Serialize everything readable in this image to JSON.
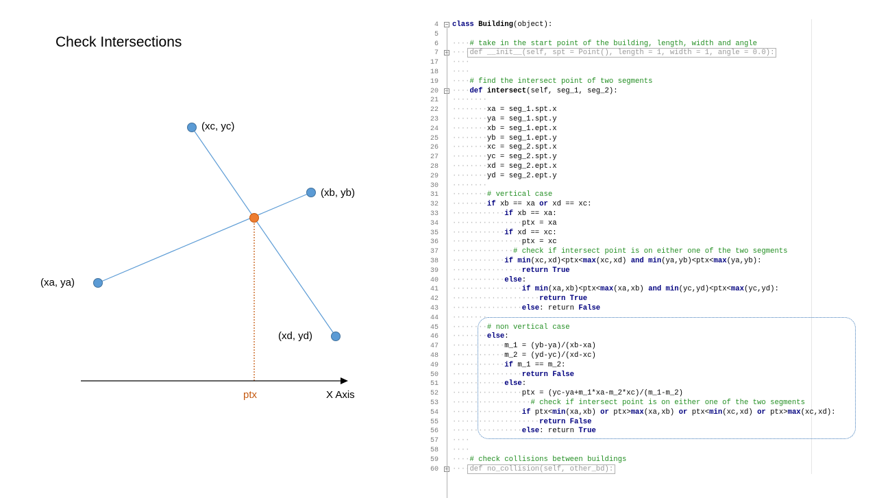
{
  "title": "Check Intersections",
  "diagram": {
    "colors": {
      "line": "#5b9bd5",
      "point": "#5b9bd5",
      "intersection": "#ed7d31",
      "axis": "#000000",
      "ptx_line": "#c55a11"
    },
    "labels": {
      "xc_yc": "(xc, yc)",
      "xb_yb": "(xb, yb)",
      "xa_ya": "(xa, ya)",
      "xd_yd": "(xd, yd)",
      "ptx": "ptx",
      "x_axis": "X Axis"
    }
  },
  "code": {
    "colors": {
      "keyword": "#00007f",
      "comment": "#248f24",
      "line_number": "#7a7a7a",
      "highlight_border": "#3b78b8"
    },
    "lines": [
      {
        "n": "4",
        "indent": 0,
        "fold": "minus",
        "tokens": [
          [
            "kw",
            "class "
          ],
          [
            "fn",
            "Building"
          ],
          [
            "pl",
            "(object):"
          ]
        ]
      },
      {
        "n": "5",
        "indent": 0,
        "tokens": []
      },
      {
        "n": "6",
        "indent": 4,
        "tokens": [
          [
            "cm",
            "# take in the start point of the building, length, width and angle"
          ]
        ]
      },
      {
        "n": "7",
        "indent": 4,
        "fold": "plus",
        "tokens": [
          [
            "folded",
            "def __init__(self, spt = Point(), length = 1, width = 1, angle = 0.0):"
          ]
        ]
      },
      {
        "n": "17",
        "indent": 4,
        "tokens": []
      },
      {
        "n": "18",
        "indent": 4,
        "tokens": []
      },
      {
        "n": "19",
        "indent": 4,
        "tokens": [
          [
            "cm",
            "# find the intersect point of two segments"
          ]
        ]
      },
      {
        "n": "20",
        "indent": 4,
        "fold": "minus",
        "tokens": [
          [
            "kw",
            "def "
          ],
          [
            "fn",
            "intersect"
          ],
          [
            "pl",
            "(self, seg_1, seg_2):"
          ]
        ]
      },
      {
        "n": "21",
        "indent": 8,
        "tokens": []
      },
      {
        "n": "22",
        "indent": 8,
        "tokens": [
          [
            "pl",
            "xa = seg_1.spt.x"
          ]
        ]
      },
      {
        "n": "23",
        "indent": 8,
        "tokens": [
          [
            "pl",
            "ya = seg_1.spt.y"
          ]
        ]
      },
      {
        "n": "24",
        "indent": 8,
        "tokens": [
          [
            "pl",
            "xb = seg_1.ept.x"
          ]
        ]
      },
      {
        "n": "25",
        "indent": 8,
        "tokens": [
          [
            "pl",
            "yb = seg_1.ept.y"
          ]
        ]
      },
      {
        "n": "26",
        "indent": 8,
        "tokens": [
          [
            "pl",
            "xc = seg_2.spt.x"
          ]
        ]
      },
      {
        "n": "27",
        "indent": 8,
        "tokens": [
          [
            "pl",
            "yc = seg_2.spt.y"
          ]
        ]
      },
      {
        "n": "28",
        "indent": 8,
        "tokens": [
          [
            "pl",
            "xd = seg_2.ept.x"
          ]
        ]
      },
      {
        "n": "29",
        "indent": 8,
        "tokens": [
          [
            "pl",
            "yd = seg_2.ept.y"
          ]
        ]
      },
      {
        "n": "30",
        "indent": 8,
        "tokens": []
      },
      {
        "n": "31",
        "indent": 8,
        "tokens": [
          [
            "cm",
            "# vertical case"
          ]
        ]
      },
      {
        "n": "32",
        "indent": 8,
        "tokens": [
          [
            "kw",
            "if "
          ],
          [
            "pl",
            "xb == xa "
          ],
          [
            "kw",
            "or "
          ],
          [
            "pl",
            "xd == xc:"
          ]
        ]
      },
      {
        "n": "33",
        "indent": 12,
        "tokens": [
          [
            "kw",
            "if "
          ],
          [
            "pl",
            "xb == xa:"
          ]
        ]
      },
      {
        "n": "34",
        "indent": 16,
        "tokens": [
          [
            "pl",
            "ptx = xa"
          ]
        ]
      },
      {
        "n": "35",
        "indent": 12,
        "tokens": [
          [
            "kw",
            "if "
          ],
          [
            "pl",
            "xd == xc:"
          ]
        ]
      },
      {
        "n": "36",
        "indent": 16,
        "tokens": [
          [
            "pl",
            "ptx = xc"
          ]
        ]
      },
      {
        "n": "37",
        "indent": 14,
        "tokens": [
          [
            "cm",
            "# check if intersect point is on either one of the two segments"
          ]
        ]
      },
      {
        "n": "38",
        "indent": 12,
        "tokens": [
          [
            "kw",
            "if "
          ],
          [
            "bi",
            "min"
          ],
          [
            "pl",
            "(xc,xd)<ptx<"
          ],
          [
            "bi",
            "max"
          ],
          [
            "pl",
            "(xc,xd) "
          ],
          [
            "kw",
            "and "
          ],
          [
            "bi",
            "min"
          ],
          [
            "pl",
            "(ya,yb)<ptx<"
          ],
          [
            "bi",
            "max"
          ],
          [
            "pl",
            "(ya,yb):"
          ]
        ]
      },
      {
        "n": "39",
        "indent": 16,
        "tokens": [
          [
            "kw",
            "return "
          ],
          [
            "kw",
            "True"
          ]
        ]
      },
      {
        "n": "40",
        "indent": 12,
        "tokens": [
          [
            "kw",
            "else"
          ],
          [
            "pl",
            ":"
          ]
        ]
      },
      {
        "n": "41",
        "indent": 16,
        "tokens": [
          [
            "kw",
            "if "
          ],
          [
            "bi",
            "min"
          ],
          [
            "pl",
            "(xa,xb)<ptx<"
          ],
          [
            "bi",
            "max"
          ],
          [
            "pl",
            "(xa,xb) "
          ],
          [
            "kw",
            "and "
          ],
          [
            "bi",
            "min"
          ],
          [
            "pl",
            "(yc,yd)<ptx<"
          ],
          [
            "bi",
            "max"
          ],
          [
            "pl",
            "(yc,yd):"
          ]
        ]
      },
      {
        "n": "42",
        "indent": 20,
        "tokens": [
          [
            "kw",
            "return "
          ],
          [
            "kw",
            "True"
          ]
        ]
      },
      {
        "n": "43",
        "indent": 16,
        "tokens": [
          [
            "kw",
            "else"
          ],
          [
            "pl",
            ": return "
          ],
          [
            "kw",
            "False"
          ]
        ]
      },
      {
        "n": "44",
        "indent": 8,
        "tokens": []
      },
      {
        "n": "45",
        "indent": 8,
        "tokens": [
          [
            "cm",
            "# non vertical case"
          ]
        ]
      },
      {
        "n": "46",
        "indent": 8,
        "tokens": [
          [
            "kw",
            "else"
          ],
          [
            "pl",
            ":"
          ]
        ]
      },
      {
        "n": "47",
        "indent": 12,
        "tokens": [
          [
            "pl",
            "m_1 = (yb-ya)/(xb-xa)"
          ]
        ]
      },
      {
        "n": "48",
        "indent": 12,
        "tokens": [
          [
            "pl",
            "m_2 = (yd-yc)/(xd-xc)"
          ]
        ]
      },
      {
        "n": "49",
        "indent": 12,
        "tokens": [
          [
            "kw",
            "if "
          ],
          [
            "pl",
            "m_1 == m_2:"
          ]
        ]
      },
      {
        "n": "50",
        "indent": 16,
        "tokens": [
          [
            "kw",
            "return "
          ],
          [
            "kw",
            "False"
          ]
        ]
      },
      {
        "n": "51",
        "indent": 12,
        "tokens": [
          [
            "kw",
            "else"
          ],
          [
            "pl",
            ":"
          ]
        ]
      },
      {
        "n": "52",
        "indent": 16,
        "tokens": [
          [
            "pl",
            "ptx = (yc-ya+m_1*xa-m_2*xc)/(m_1-m_2)"
          ]
        ]
      },
      {
        "n": "53",
        "indent": 18,
        "tokens": [
          [
            "cm",
            "# check if intersect point is on either one of the two segments"
          ]
        ]
      },
      {
        "n": "54",
        "indent": 16,
        "tokens": [
          [
            "kw",
            "if "
          ],
          [
            "pl",
            "ptx<"
          ],
          [
            "bi",
            "min"
          ],
          [
            "pl",
            "(xa,xb) "
          ],
          [
            "kw",
            "or "
          ],
          [
            "pl",
            "ptx>"
          ],
          [
            "bi",
            "max"
          ],
          [
            "pl",
            "(xa,xb) "
          ],
          [
            "kw",
            "or "
          ],
          [
            "pl",
            "ptx<"
          ],
          [
            "bi",
            "min"
          ],
          [
            "pl",
            "(xc,xd) "
          ],
          [
            "kw",
            "or "
          ],
          [
            "pl",
            "ptx>"
          ],
          [
            "bi",
            "max"
          ],
          [
            "pl",
            "(xc,xd):"
          ]
        ]
      },
      {
        "n": "55",
        "indent": 20,
        "tokens": [
          [
            "kw",
            "return "
          ],
          [
            "kw",
            "False"
          ]
        ]
      },
      {
        "n": "56",
        "indent": 16,
        "tokens": [
          [
            "kw",
            "else"
          ],
          [
            "pl",
            ": return "
          ],
          [
            "kw",
            "True"
          ]
        ]
      },
      {
        "n": "57",
        "indent": 4,
        "tokens": []
      },
      {
        "n": "58",
        "indent": 4,
        "tokens": []
      },
      {
        "n": "59",
        "indent": 4,
        "tokens": [
          [
            "cm",
            "# check collisions between buildings"
          ]
        ]
      },
      {
        "n": "60",
        "indent": 4,
        "fold": "plus",
        "tokens": [
          [
            "folded",
            "def no_collision(self, other_bd):"
          ]
        ]
      }
    ]
  }
}
